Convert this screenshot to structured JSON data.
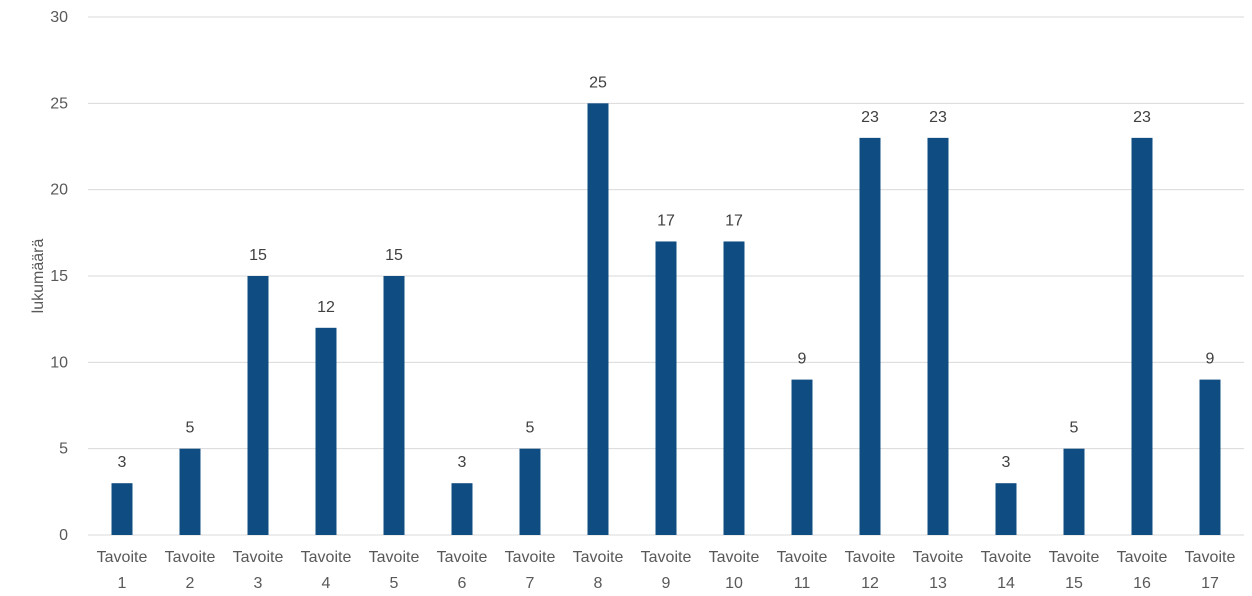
{
  "chart_data": {
    "type": "bar",
    "title": "",
    "xlabel": "",
    "ylabel": "lukumäärä",
    "ylim": [
      0,
      30
    ],
    "yticks": [
      0,
      5,
      10,
      15,
      20,
      25,
      30
    ],
    "grid": true,
    "legend": "none",
    "bar_color": "#0F4C81",
    "categories": [
      [
        "Tavoite",
        "1"
      ],
      [
        "Tavoite",
        "2"
      ],
      [
        "Tavoite",
        "3"
      ],
      [
        "Tavoite",
        "4"
      ],
      [
        "Tavoite",
        "5"
      ],
      [
        "Tavoite",
        "6"
      ],
      [
        "Tavoite",
        "7"
      ],
      [
        "Tavoite",
        "8"
      ],
      [
        "Tavoite",
        "9"
      ],
      [
        "Tavoite",
        "10"
      ],
      [
        "Tavoite",
        "11"
      ],
      [
        "Tavoite",
        "12"
      ],
      [
        "Tavoite",
        "13"
      ],
      [
        "Tavoite",
        "14"
      ],
      [
        "Tavoite",
        "15"
      ],
      [
        "Tavoite",
        "16"
      ],
      [
        "Tavoite",
        "17"
      ]
    ],
    "values": [
      3,
      5,
      15,
      12,
      15,
      3,
      5,
      25,
      17,
      17,
      9,
      23,
      23,
      3,
      5,
      23,
      9
    ]
  }
}
